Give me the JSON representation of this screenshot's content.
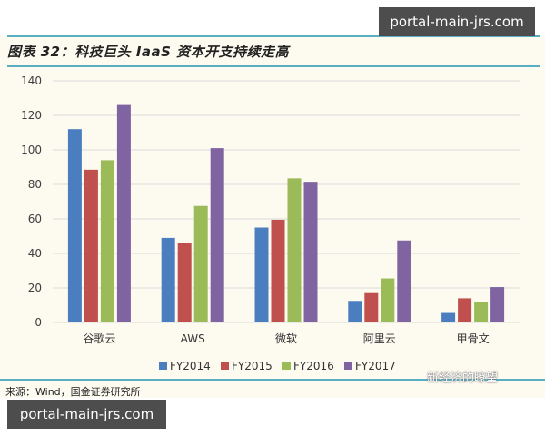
{
  "header": {
    "title": "图表 32：科技巨头 IaaS 资本开支持续走高",
    "watermark_top": "portal-main-jrs.com"
  },
  "footer": {
    "source": "来源：Wind，国金证券研究所",
    "watermark_bottom": "portal-main-jrs.com",
    "wechat_mark": "新经济的瞭望"
  },
  "colors": {
    "FY2014": "#4a7ebf",
    "FY2015": "#c0504d",
    "FY2016": "#9bbb59",
    "FY2017": "#8064a2",
    "grid": "#d9d9d9",
    "rule": "#5aaec2"
  },
  "chart_data": {
    "type": "bar",
    "title": "科技巨头 IaaS 资本开支持续走高",
    "xlabel": "",
    "ylabel": "",
    "ylim": [
      0,
      140
    ],
    "yticks": [
      0,
      20,
      40,
      60,
      80,
      100,
      120,
      140
    ],
    "grid": true,
    "legend_position": "bottom",
    "categories": [
      "谷歌云",
      "AWS",
      "微软",
      "阿里云",
      "甲骨文"
    ],
    "series": [
      {
        "name": "FY2014",
        "values": [
          112,
          49,
          55,
          12.5,
          5.5
        ]
      },
      {
        "name": "FY2015",
        "values": [
          88.5,
          46,
          59.5,
          17,
          14
        ]
      },
      {
        "name": "FY2016",
        "values": [
          94,
          67.5,
          83.5,
          25.5,
          12
        ]
      },
      {
        "name": "FY2017",
        "values": [
          126,
          101,
          81.5,
          47.5,
          20.5
        ]
      }
    ]
  }
}
